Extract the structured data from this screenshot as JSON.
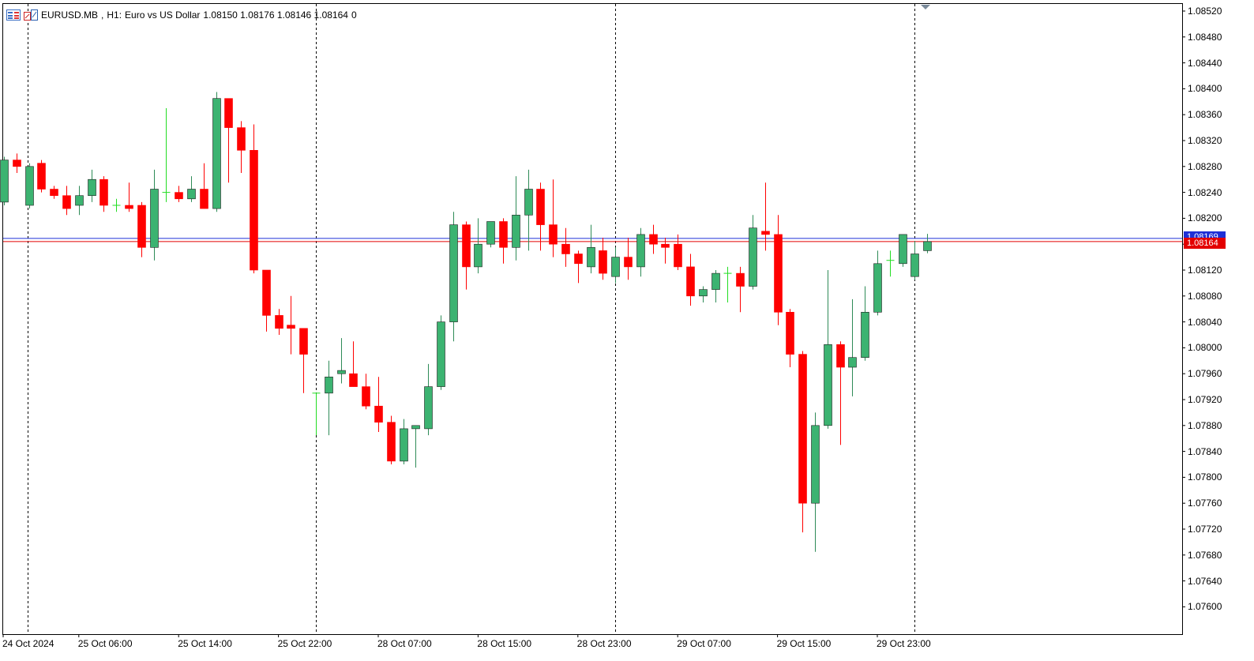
{
  "header": {
    "symbol": "EURUSD.MB",
    "timeframe": "H1:",
    "description": "Euro vs US Dollar",
    "ohlc": "1.08150 1.08176 1.08146 1.08164",
    "extra": "0"
  },
  "icons": [
    "chart-list-icon",
    "indicator-icon",
    "shift-marker-icon"
  ],
  "price_axis": {
    "labels": [
      "1.08520",
      "1.08480",
      "1.08440",
      "1.08400",
      "1.08360",
      "1.08320",
      "1.08280",
      "1.08240",
      "1.08200",
      "1.08160",
      "1.08120",
      "1.08080",
      "1.08040",
      "1.08000",
      "1.07960",
      "1.07920",
      "1.07880",
      "1.07840",
      "1.07800",
      "1.07760",
      "1.07720",
      "1.07680",
      "1.07640",
      "1.07600"
    ],
    "ask_label": "1.08169",
    "bid_label": "1.08164"
  },
  "time_axis": {
    "labels": [
      "24 Oct 2024",
      "25 Oct 06:00",
      "25 Oct 14:00",
      "25 Oct 22:00",
      "28 Oct 07:00",
      "28 Oct 15:00",
      "28 Oct 23:00",
      "29 Oct 07:00",
      "29 Oct 15:00",
      "29 Oct 23:00"
    ]
  },
  "colors": {
    "bull": "#3cb371",
    "bear": "#ff0000",
    "doji": "#22dd22",
    "ask_line": "#1e2fd6",
    "bid_line": "#e30000",
    "grid": "#000000"
  },
  "chart_data": {
    "type": "candlestick",
    "symbol": "EURUSD.MB",
    "timeframe": "H1",
    "ylim": [
      1.0758,
      1.0853
    ],
    "bid": 1.08164,
    "ask": 1.08169,
    "candles": [
      [
        1.08225,
        1.08295,
        1.0822,
        1.0829
      ],
      [
        1.0829,
        1.083,
        1.0827,
        1.0828
      ],
      [
        1.0822,
        1.08285,
        1.08215,
        1.0828
      ],
      [
        1.08285,
        1.0829,
        1.0824,
        1.08245
      ],
      [
        1.08245,
        1.0825,
        1.0823,
        1.08235
      ],
      [
        1.08235,
        1.0825,
        1.08205,
        1.08215
      ],
      [
        1.0822,
        1.0825,
        1.08205,
        1.08235
      ],
      [
        1.08235,
        1.08275,
        1.08225,
        1.0826
      ],
      [
        1.0826,
        1.08265,
        1.0821,
        1.0822
      ],
      [
        1.0822,
        1.0823,
        1.0821,
        1.0822
      ],
      [
        1.0822,
        1.08255,
        1.0821,
        1.08215
      ],
      [
        1.0822,
        1.08225,
        1.0814,
        1.08155
      ],
      [
        1.08155,
        1.08275,
        1.08135,
        1.08245
      ],
      [
        1.0824,
        1.0837,
        1.08225,
        1.0824
      ],
      [
        1.0824,
        1.0825,
        1.08225,
        1.0823
      ],
      [
        1.0823,
        1.08265,
        1.08225,
        1.08245
      ],
      [
        1.08245,
        1.08285,
        1.08215,
        1.08215
      ],
      [
        1.08215,
        1.08395,
        1.0821,
        1.08385
      ],
      [
        1.08385,
        1.08385,
        1.08255,
        1.0834
      ],
      [
        1.0834,
        1.0835,
        1.0827,
        1.08305
      ],
      [
        1.08305,
        1.08345,
        1.08115,
        1.0812
      ],
      [
        1.0812,
        1.0812,
        1.08025,
        1.0805
      ],
      [
        1.0805,
        1.0806,
        1.0802,
        1.0803
      ],
      [
        1.08035,
        1.0808,
        1.0799,
        1.0803
      ],
      [
        1.0803,
        1.0803,
        1.0793,
        1.0799
      ],
      [
        1.0793,
        1.0793,
        1.07865,
        1.0793
      ],
      [
        1.0793,
        1.0798,
        1.07865,
        1.07955
      ],
      [
        1.0796,
        1.08015,
        1.07945,
        1.07965
      ],
      [
        1.0796,
        1.0801,
        1.0794,
        1.0794
      ],
      [
        1.0794,
        1.0796,
        1.07905,
        1.0791
      ],
      [
        1.0791,
        1.07955,
        1.0787,
        1.07885
      ],
      [
        1.07885,
        1.07895,
        1.0782,
        1.07825
      ],
      [
        1.07825,
        1.0789,
        1.0782,
        1.07875
      ],
      [
        1.07875,
        1.0788,
        1.07815,
        1.0788
      ],
      [
        1.07875,
        1.07975,
        1.07865,
        1.0794
      ],
      [
        1.0794,
        1.0805,
        1.07935,
        1.0804
      ],
      [
        1.0804,
        1.0821,
        1.0801,
        1.0819
      ],
      [
        1.0819,
        1.08195,
        1.0809,
        1.08125
      ],
      [
        1.08125,
        1.082,
        1.08115,
        1.0816
      ],
      [
        1.0816,
        1.08195,
        1.08155,
        1.08195
      ],
      [
        1.08195,
        1.082,
        1.0813,
        1.08155
      ],
      [
        1.08155,
        1.08265,
        1.08135,
        1.08205
      ],
      [
        1.08205,
        1.08275,
        1.0815,
        1.08245
      ],
      [
        1.08245,
        1.08255,
        1.0815,
        1.0819
      ],
      [
        1.0819,
        1.0826,
        1.0814,
        1.0816
      ],
      [
        1.0816,
        1.08185,
        1.08125,
        1.08145
      ],
      [
        1.08145,
        1.0815,
        1.081,
        1.0813
      ],
      [
        1.08125,
        1.0819,
        1.08115,
        1.08155
      ],
      [
        1.0815,
        1.0817,
        1.08105,
        1.08115
      ],
      [
        1.0811,
        1.08155,
        1.081,
        1.0814
      ],
      [
        1.0814,
        1.0817,
        1.08105,
        1.08125
      ],
      [
        1.08125,
        1.08185,
        1.0811,
        1.08175
      ],
      [
        1.08175,
        1.0819,
        1.08145,
        1.0816
      ],
      [
        1.0816,
        1.0817,
        1.0813,
        1.08155
      ],
      [
        1.0816,
        1.08175,
        1.0812,
        1.08125
      ],
      [
        1.08125,
        1.08145,
        1.08065,
        1.0808
      ],
      [
        1.0808,
        1.08095,
        1.0807,
        1.0809
      ],
      [
        1.0809,
        1.0812,
        1.0807,
        1.08115
      ],
      [
        1.08115,
        1.08125,
        1.0807,
        1.08115
      ],
      [
        1.08115,
        1.08125,
        1.08055,
        1.08095
      ],
      [
        1.08095,
        1.08205,
        1.0809,
        1.08185
      ],
      [
        1.0818,
        1.08255,
        1.0815,
        1.08175
      ],
      [
        1.08175,
        1.08205,
        1.08035,
        1.08055
      ],
      [
        1.08055,
        1.0806,
        1.0797,
        1.0799
      ],
      [
        1.0799,
        1.07995,
        1.07715,
        1.0776
      ],
      [
        1.0776,
        1.079,
        1.07685,
        1.0788
      ],
      [
        1.0788,
        1.0812,
        1.07875,
        1.08005
      ],
      [
        1.08005,
        1.0801,
        1.0785,
        1.0797
      ],
      [
        1.0797,
        1.08075,
        1.07925,
        1.07985
      ],
      [
        1.07985,
        1.08095,
        1.0798,
        1.08055
      ],
      [
        1.08055,
        1.0815,
        1.0805,
        1.0813
      ],
      [
        1.08135,
        1.0815,
        1.0811,
        1.08135
      ],
      [
        1.0813,
        1.08175,
        1.08125,
        1.08175
      ],
      [
        1.0811,
        1.08165,
        1.08105,
        1.08145
      ],
      [
        1.0815,
        1.08176,
        1.08146,
        1.08164
      ]
    ]
  }
}
